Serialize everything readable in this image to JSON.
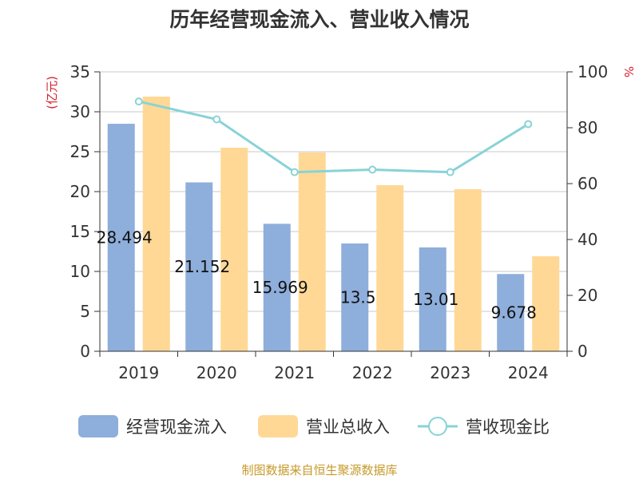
{
  "chart_data": {
    "type": "bar",
    "title": "历年经营现金流入、营业收入情况",
    "categories": [
      "2019",
      "2020",
      "2021",
      "2022",
      "2023",
      "2024"
    ],
    "series": [
      {
        "name": "经营现金流入",
        "kind": "bar",
        "axis": "left",
        "color": "#8eaedb",
        "values": [
          28.494,
          21.152,
          15.969,
          13.5,
          13.01,
          9.678
        ],
        "labels": [
          "28.494",
          "21.152",
          "15.969",
          "13.5",
          "13.01",
          "9.678"
        ]
      },
      {
        "name": "营业总收入",
        "kind": "bar",
        "axis": "left",
        "color": "#ffd896",
        "values": [
          31.9,
          25.5,
          24.9,
          20.8,
          20.3,
          11.9
        ]
      },
      {
        "name": "营收现金比",
        "kind": "line",
        "axis": "right",
        "color": "#88d3d6",
        "values": [
          89.4,
          83.0,
          64.1,
          65.0,
          64.1,
          81.3
        ]
      }
    ],
    "y_left": {
      "unit": "(亿元)",
      "min": 0,
      "max": 35,
      "ticks": [
        0,
        5,
        10,
        15,
        20,
        25,
        30,
        35
      ]
    },
    "y_right": {
      "unit": "%",
      "min": 0,
      "max": 100,
      "ticks": [
        0,
        20,
        40,
        60,
        80,
        100
      ]
    },
    "grid": true,
    "legend": "bottom"
  },
  "source": "制图数据来自恒生聚源数据库"
}
